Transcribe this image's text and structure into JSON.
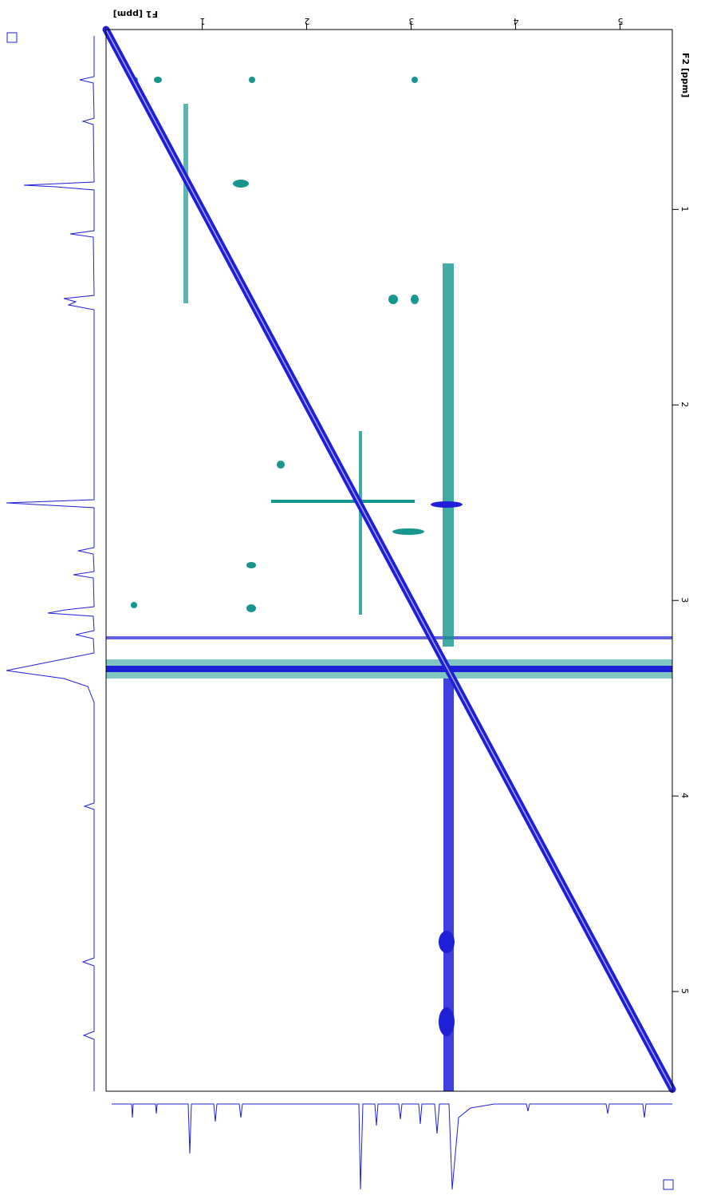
{
  "chart_data": {
    "type": "contour2d",
    "x_label": "F1 [ppm]",
    "y_label": "F2 [ppm]",
    "xlim": [
      0.08,
      5.5
    ],
    "ylim": [
      0.08,
      5.51
    ],
    "xticks": [
      1,
      2,
      3,
      4,
      5
    ],
    "yticks": [
      1,
      2,
      3,
      4,
      5
    ],
    "color": "#1f1fd8",
    "color2": "#17958f"
  }
}
